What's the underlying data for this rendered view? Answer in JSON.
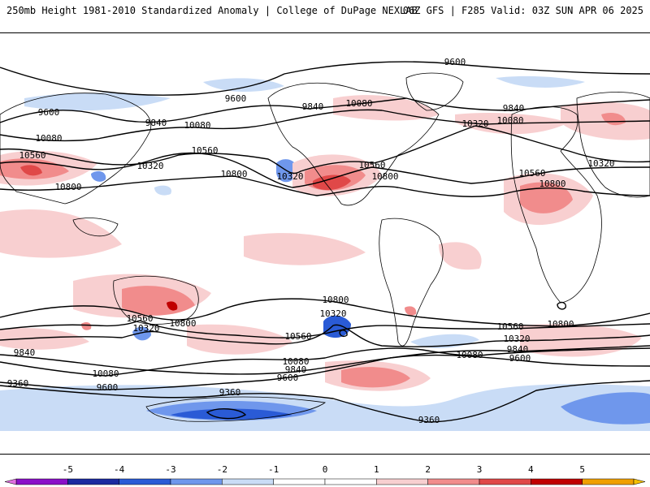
{
  "header": {
    "left": "250mb Height 1981-2010 Standardized Anomaly | College of DuPage NEXLAB",
    "right": "06Z GFS | F285 Valid: 03Z SUN APR 06 2025"
  },
  "colors": {
    "pos1": "#f8cfd0",
    "pos2": "#f18c8c",
    "pos3": "#e04848",
    "pos4": "#c00000",
    "pos5": "#f0a000",
    "neg1": "#c9dcf6",
    "neg2": "#6f97ec",
    "neg3": "#2a5bd6",
    "neg4": "#1b2aa0",
    "neg5": "#8a10c8"
  },
  "contour_labels": [
    {
      "text": "9600",
      "pos": [
        560,
        78
      ]
    },
    {
      "text": "9600",
      "pos": [
        290,
        123
      ]
    },
    {
      "text": "9600",
      "pos": [
        60,
        140
      ]
    },
    {
      "text": "9840",
      "pos": [
        385,
        133
      ]
    },
    {
      "text": "10080",
      "pos": [
        442,
        129
      ]
    },
    {
      "text": "9840",
      "pos": [
        632,
        135
      ]
    },
    {
      "text": "10080",
      "pos": [
        628,
        150
      ]
    },
    {
      "text": "9840",
      "pos": [
        192,
        153
      ]
    },
    {
      "text": "10080",
      "pos": [
        243,
        156
      ]
    },
    {
      "text": "10320",
      "pos": [
        585,
        154
      ]
    },
    {
      "text": "10080",
      "pos": [
        60,
        172
      ]
    },
    {
      "text": "10560",
      "pos": [
        252,
        187
      ]
    },
    {
      "text": "10560",
      "pos": [
        40,
        193
      ]
    },
    {
      "text": "10320",
      "pos": [
        185,
        206
      ]
    },
    {
      "text": "10560",
      "pos": [
        458,
        205
      ]
    },
    {
      "text": "10320",
      "pos": [
        740,
        203
      ]
    },
    {
      "text": "10800",
      "pos": [
        288,
        216
      ]
    },
    {
      "text": "10320",
      "pos": [
        357,
        219
      ]
    },
    {
      "text": "10800",
      "pos": [
        474,
        219
      ]
    },
    {
      "text": "10560",
      "pos": [
        655,
        215
      ]
    },
    {
      "text": "10800",
      "pos": [
        84,
        232
      ]
    },
    {
      "text": "10800",
      "pos": [
        680,
        228
      ]
    },
    {
      "text": "10800",
      "pos": [
        413,
        371
      ]
    },
    {
      "text": "10320",
      "pos": [
        410,
        388
      ]
    },
    {
      "text": "10560",
      "pos": [
        172,
        394
      ]
    },
    {
      "text": "10800",
      "pos": [
        225,
        400
      ]
    },
    {
      "text": "10320",
      "pos": [
        180,
        406
      ]
    },
    {
      "text": "10800",
      "pos": [
        690,
        401
      ]
    },
    {
      "text": "10560",
      "pos": [
        628,
        404
      ]
    },
    {
      "text": "10320",
      "pos": [
        636,
        419
      ]
    },
    {
      "text": "10560",
      "pos": [
        367,
        416
      ]
    },
    {
      "text": "9840",
      "pos": [
        30,
        436
      ]
    },
    {
      "text": "9840",
      "pos": [
        637,
        432
      ]
    },
    {
      "text": "10080",
      "pos": [
        578,
        439
      ]
    },
    {
      "text": "9600",
      "pos": [
        640,
        443
      ]
    },
    {
      "text": "10080",
      "pos": [
        364,
        447
      ]
    },
    {
      "text": "9840",
      "pos": [
        364,
        457
      ]
    },
    {
      "text": "10080",
      "pos": [
        130,
        462
      ]
    },
    {
      "text": "9600",
      "pos": [
        354,
        467
      ]
    },
    {
      "text": "9360",
      "pos": [
        22,
        474
      ]
    },
    {
      "text": "9600",
      "pos": [
        132,
        479
      ]
    },
    {
      "text": "9360",
      "pos": [
        283,
        485
      ]
    },
    {
      "text": "9360",
      "pos": [
        528,
        519
      ]
    }
  ],
  "colorbar": {
    "ticks": [
      "-5",
      "-4",
      "-3",
      "-2",
      "-1",
      "0",
      "1",
      "2",
      "3",
      "4",
      "5"
    ]
  }
}
